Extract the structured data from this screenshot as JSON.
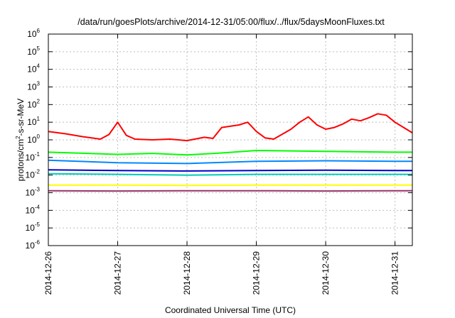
{
  "chart_data": {
    "type": "line",
    "title": "/data/run/goesPlots/archive/2014-12-31/05:00/flux/../flux/5daysMoonFluxes.txt",
    "xlabel": "Coordinated Universal Time (UTC)",
    "ylabel": "protons/cm2-s-sr-MeV",
    "ylabel_parts": {
      "base": "protons/cm",
      "sup": "2",
      "rest": "-s-sr-MeV"
    },
    "yscale": "log",
    "xlim": [
      "2014-12-26T00:00",
      "2014-12-31T06:00"
    ],
    "ylim": [
      1e-06,
      1000000.0
    ],
    "grid": true,
    "x_ticks": [
      {
        "value": "2014-12-26T00:00",
        "label": "2014-12-26"
      },
      {
        "value": "2014-12-27T00:00",
        "label": "2014-12-27"
      },
      {
        "value": "2014-12-28T00:00",
        "label": "2014-12-28"
      },
      {
        "value": "2014-12-29T00:00",
        "label": "2014-12-29"
      },
      {
        "value": "2014-12-30T00:00",
        "label": "2014-12-30"
      },
      {
        "value": "2014-12-31T00:00",
        "label": "2014-12-31"
      }
    ],
    "y_ticks": [
      {
        "value": 1e-06,
        "base": "10",
        "exp": "-6"
      },
      {
        "value": 1e-05,
        "base": "10",
        "exp": "-5"
      },
      {
        "value": 0.0001,
        "base": "10",
        "exp": "-4"
      },
      {
        "value": 0.001,
        "base": "10",
        "exp": "-3"
      },
      {
        "value": 0.01,
        "base": "10",
        "exp": "-2"
      },
      {
        "value": 0.1,
        "base": "10",
        "exp": "-1"
      },
      {
        "value": 1,
        "base": "10",
        "exp": "0"
      },
      {
        "value": 10,
        "base": "10",
        "exp": "1"
      },
      {
        "value": 100,
        "base": "10",
        "exp": "2"
      },
      {
        "value": 1000,
        "base": "10",
        "exp": "3"
      },
      {
        "value": 10000,
        "base": "10",
        "exp": "4"
      },
      {
        "value": 100000,
        "base": "10",
        "exp": "5"
      },
      {
        "value": 1000000,
        "base": "10",
        "exp": "6"
      }
    ],
    "series": [
      {
        "color": "#ff0000",
        "x": [
          "2014-12-26T00:00",
          "2014-12-26T06:00",
          "2014-12-26T12:00",
          "2014-12-26T18:00",
          "2014-12-26T21:00",
          "2014-12-27T00:00",
          "2014-12-27T03:00",
          "2014-12-27T06:00",
          "2014-12-27T12:00",
          "2014-12-27T18:00",
          "2014-12-28T00:00",
          "2014-12-28T06:00",
          "2014-12-28T09:00",
          "2014-12-28T12:00",
          "2014-12-28T18:00",
          "2014-12-28T21:00",
          "2014-12-29T00:00",
          "2014-12-29T03:00",
          "2014-12-29T06:00",
          "2014-12-29T12:00",
          "2014-12-29T15:00",
          "2014-12-29T18:00",
          "2014-12-29T21:00",
          "2014-12-30T00:00",
          "2014-12-30T03:00",
          "2014-12-30T06:00",
          "2014-12-30T09:00",
          "2014-12-30T12:00",
          "2014-12-30T15:00",
          "2014-12-30T18:00",
          "2014-12-30T21:00",
          "2014-12-31T00:00",
          "2014-12-31T03:00",
          "2014-12-31T06:00"
        ],
        "y": [
          3,
          2.2,
          1.5,
          1.1,
          2,
          10,
          1.8,
          1.1,
          1,
          1.1,
          0.9,
          1.4,
          1.2,
          5,
          7,
          10,
          3,
          1.3,
          1.1,
          4,
          10,
          20,
          7,
          4,
          5,
          8,
          15,
          12,
          18,
          30,
          25,
          10,
          5,
          2.5
        ]
      },
      {
        "color": "#00ff00",
        "x": [
          "2014-12-26T00:00",
          "2014-12-27T00:00",
          "2014-12-27T12:00",
          "2014-12-28T00:00",
          "2014-12-28T12:00",
          "2014-12-29T00:00",
          "2014-12-30T00:00",
          "2014-12-31T00:00",
          "2014-12-31T06:00"
        ],
        "y": [
          0.2,
          0.15,
          0.17,
          0.14,
          0.18,
          0.25,
          0.22,
          0.2,
          0.2
        ]
      },
      {
        "color": "#0088ff",
        "x": [
          "2014-12-26T00:00",
          "2014-12-27T00:00",
          "2014-12-28T00:00",
          "2014-12-29T00:00",
          "2014-12-30T00:00",
          "2014-12-31T00:00",
          "2014-12-31T06:00"
        ],
        "y": [
          0.07,
          0.05,
          0.045,
          0.06,
          0.065,
          0.06,
          0.06
        ]
      },
      {
        "color": "#0000cc",
        "x": [
          "2014-12-26T00:00",
          "2014-12-27T00:00",
          "2014-12-28T00:00",
          "2014-12-29T00:00",
          "2014-12-30T00:00",
          "2014-12-31T00:00",
          "2014-12-31T06:00"
        ],
        "y": [
          0.02,
          0.018,
          0.017,
          0.018,
          0.019,
          0.018,
          0.018
        ]
      },
      {
        "color": "#00ccbb",
        "x": [
          "2014-12-26T00:00",
          "2014-12-27T00:00",
          "2014-12-28T00:00",
          "2014-12-29T00:00",
          "2014-12-30T00:00",
          "2014-12-31T00:00",
          "2014-12-31T06:00"
        ],
        "y": [
          0.012,
          0.011,
          0.01,
          0.011,
          0.011,
          0.011,
          0.011
        ]
      },
      {
        "color": "#ffff00",
        "x": [
          "2014-12-26T00:00",
          "2014-12-27T00:00",
          "2014-12-28T00:00",
          "2014-12-29T00:00",
          "2014-12-30T00:00",
          "2014-12-31T00:00",
          "2014-12-31T06:00"
        ],
        "y": [
          0.0027,
          0.0027,
          0.0026,
          0.0027,
          0.0027,
          0.0027,
          0.0027
        ]
      },
      {
        "color": "#993366",
        "x": [
          "2014-12-26T00:00",
          "2014-12-27T00:00",
          "2014-12-28T00:00",
          "2014-12-29T00:00",
          "2014-12-30T00:00",
          "2014-12-31T00:00",
          "2014-12-31T06:00"
        ],
        "y": [
          0.0013,
          0.00125,
          0.0013,
          0.0013,
          0.00125,
          0.0013,
          0.0013
        ]
      }
    ]
  }
}
